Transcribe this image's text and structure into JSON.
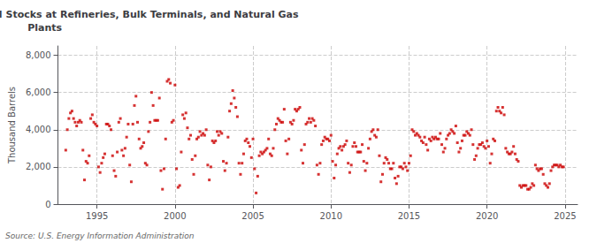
{
  "chart_data": {
    "type": "scatter",
    "title": "Monthly Connecticut Distillate Fuel Oil Stocks at Refineries, Bulk Terminals, and Natural Gas\nPlants",
    "ylabel": "Thousand Barrels",
    "annotations": [
      "Source: U.S. Energy Information Administration"
    ],
    "color": "#cc0000",
    "marker": "square",
    "grid": true,
    "xlim": [
      1992.5,
      2025.8
    ],
    "xticks": [
      1995,
      2000,
      2005,
      2010,
      2015,
      2020,
      2025
    ],
    "ylim": [
      0,
      8500
    ],
    "yticks": [
      0,
      {
        "value": 2000,
        "label": "2,000"
      },
      {
        "value": 4000,
        "label": "4,000"
      },
      {
        "value": 6000,
        "label": "6,000"
      },
      {
        "value": 8000,
        "label": "8,000"
      }
    ],
    "x": [
      1993.0,
      1993.1,
      1993.2,
      1993.3,
      1993.4,
      1993.5,
      1993.6,
      1993.7,
      1993.8,
      1993.9,
      1994.0,
      1994.1,
      1994.2,
      1994.3,
      1994.4,
      1994.5,
      1994.6,
      1994.7,
      1994.8,
      1994.9,
      1995.0,
      1995.1,
      1995.2,
      1995.3,
      1995.4,
      1995.5,
      1995.6,
      1995.7,
      1995.8,
      1995.9,
      1996.0,
      1996.1,
      1996.2,
      1996.3,
      1996.4,
      1996.5,
      1996.6,
      1996.7,
      1996.8,
      1996.9,
      1997.0,
      1997.1,
      1997.2,
      1997.3,
      1997.4,
      1997.5,
      1997.6,
      1997.7,
      1997.8,
      1997.9,
      1998.0,
      1998.1,
      1998.2,
      1998.3,
      1998.4,
      1998.5,
      1998.6,
      1998.7,
      1998.8,
      1998.9,
      1999.0,
      1999.1,
      1999.2,
      1999.3,
      1999.4,
      1999.5,
      1999.6,
      1999.7,
      1999.8,
      1999.9,
      2000.0,
      2000.1,
      2000.2,
      2000.3,
      2000.4,
      2000.5,
      2000.6,
      2000.7,
      2000.8,
      2000.9,
      2001.0,
      2001.1,
      2001.2,
      2001.3,
      2001.4,
      2001.5,
      2001.6,
      2001.7,
      2001.8,
      2001.9,
      2002.0,
      2002.1,
      2002.2,
      2002.3,
      2002.4,
      2002.5,
      2002.6,
      2002.7,
      2002.8,
      2002.9,
      2003.0,
      2003.1,
      2003.2,
      2003.3,
      2003.4,
      2003.5,
      2003.6,
      2003.7,
      2003.8,
      2003.9,
      2004.0,
      2004.1,
      2004.2,
      2004.3,
      2004.4,
      2004.5,
      2004.6,
      2004.7,
      2004.8,
      2004.9,
      2005.0,
      2005.1,
      2005.2,
      2005.3,
      2005.4,
      2005.5,
      2005.6,
      2005.7,
      2005.8,
      2005.9,
      2006.0,
      2006.1,
      2006.2,
      2006.3,
      2006.4,
      2006.5,
      2006.6,
      2006.7,
      2006.8,
      2006.9,
      2007.0,
      2007.1,
      2007.2,
      2007.3,
      2007.4,
      2007.5,
      2007.6,
      2007.7,
      2007.8,
      2007.9,
      2008.0,
      2008.1,
      2008.2,
      2008.3,
      2008.4,
      2008.5,
      2008.6,
      2008.7,
      2008.8,
      2008.9,
      2009.0,
      2009.1,
      2009.2,
      2009.3,
      2009.4,
      2009.5,
      2009.6,
      2009.7,
      2009.8,
      2009.9,
      2010.0,
      2010.1,
      2010.2,
      2010.3,
      2010.4,
      2010.5,
      2010.6,
      2010.7,
      2010.8,
      2010.9,
      2011.0,
      2011.1,
      2011.2,
      2011.3,
      2011.4,
      2011.5,
      2011.6,
      2011.7,
      2011.8,
      2011.9,
      2012.0,
      2012.1,
      2012.2,
      2012.3,
      2012.4,
      2012.5,
      2012.6,
      2012.7,
      2012.8,
      2012.9,
      2013.0,
      2013.1,
      2013.2,
      2013.3,
      2013.4,
      2013.5,
      2013.6,
      2013.7,
      2013.8,
      2013.9,
      2014.0,
      2014.1,
      2014.2,
      2014.3,
      2014.4,
      2014.5,
      2014.6,
      2014.7,
      2014.8,
      2014.9,
      2015.0,
      2015.1,
      2015.2,
      2015.3,
      2015.4,
      2015.5,
      2015.6,
      2015.7,
      2015.8,
      2015.9,
      2016.0,
      2016.1,
      2016.2,
      2016.3,
      2016.4,
      2016.5,
      2016.6,
      2016.7,
      2016.8,
      2016.9,
      2017.0,
      2017.1,
      2017.2,
      2017.3,
      2017.4,
      2017.5,
      2017.6,
      2017.7,
      2017.8,
      2017.9,
      2018.0,
      2018.1,
      2018.2,
      2018.3,
      2018.4,
      2018.5,
      2018.6,
      2018.7,
      2018.8,
      2018.9,
      2019.0,
      2019.1,
      2019.2,
      2019.3,
      2019.4,
      2019.5,
      2019.6,
      2019.7,
      2019.8,
      2019.9,
      2020.0,
      2020.1,
      2020.2,
      2020.3,
      2020.4,
      2020.5,
      2020.6,
      2020.7,
      2020.8,
      2020.9,
      2021.0,
      2021.1,
      2021.2,
      2021.3,
      2021.4,
      2021.5,
      2021.6,
      2021.7,
      2021.8,
      2021.9,
      2022.0,
      2022.1,
      2022.2,
      2022.3,
      2022.4,
      2022.5,
      2022.6,
      2022.7,
      2022.8,
      2022.9,
      2023.0,
      2023.1,
      2023.2,
      2023.3,
      2023.4,
      2023.5,
      2023.6,
      2023.7,
      2023.8,
      2023.9,
      2024.0,
      2024.1,
      2024.2,
      2024.3,
      2024.4,
      2024.5,
      2024.6,
      2024.7,
      2024.8,
      2024.9
    ],
    "values": [
      2900,
      4000,
      4600,
      4900,
      5000,
      4600,
      4400,
      4200,
      4400,
      4500,
      4400,
      2900,
      1300,
      2300,
      2200,
      2600,
      4600,
      4800,
      4400,
      4300,
      4200,
      2000,
      1700,
      2200,
      2500,
      2700,
      4300,
      4300,
      4200,
      4000,
      2600,
      1800,
      1500,
      2800,
      4400,
      4600,
      2900,
      2600,
      3000,
      3600,
      4300,
      2100,
      1200,
      4300,
      5300,
      5800,
      4400,
      3500,
      3000,
      3100,
      3300,
      2200,
      2100,
      3900,
      4400,
      6000,
      5300,
      4500,
      4500,
      4500,
      5700,
      1800,
      800,
      1900,
      3500,
      6600,
      6700,
      6500,
      4400,
      4500,
      6400,
      1900,
      900,
      1000,
      2800,
      4800,
      4600,
      4900,
      4100,
      3500,
      3700,
      2400,
      1600,
      2600,
      3500,
      3600,
      3900,
      3700,
      3800,
      3700,
      4000,
      2100,
      1300,
      2000,
      3400,
      3300,
      3400,
      3900,
      3700,
      3900,
      3800,
      2300,
      1800,
      2200,
      3600,
      5000,
      5400,
      6100,
      5700,
      5200,
      4700,
      2200,
      1600,
      2200,
      2700,
      3400,
      3500,
      3300,
      3100,
      2500,
      3500,
      1900,
      600,
      1500,
      2600,
      2800,
      2700,
      2800,
      2900,
      3000,
      3500,
      2700,
      2600,
      3000,
      4000,
      4300,
      4600,
      4500,
      4400,
      4400,
      5100,
      3400,
      2700,
      3500,
      4400,
      4300,
      4500,
      5100,
      5000,
      5100,
      5200,
      2900,
      2200,
      3200,
      4300,
      4400,
      4600,
      4400,
      4600,
      4500,
      4200,
      2100,
      1600,
      2200,
      3200,
      3400,
      3600,
      3500,
      3500,
      3400,
      3700,
      2300,
      1400,
      2100,
      2700,
      3000,
      3100,
      2900,
      3100,
      3200,
      3400,
      2200,
      1700,
      2100,
      3100,
      3300,
      3100,
      2800,
      2800,
      2800,
      3200,
      2300,
      1800,
      2200,
      3000,
      3500,
      3900,
      4000,
      3700,
      3600,
      4000,
      2600,
      1200,
      1600,
      2200,
      2500,
      2400,
      2200,
      1900,
      1900,
      2200,
      1400,
      1100,
      1500,
      2000,
      2000,
      1900,
      2200,
      2000,
      1800,
      2200,
      2600,
      4000,
      3900,
      3700,
      3800,
      3700,
      3600,
      3400,
      3300,
      3600,
      3200,
      2900,
      3500,
      3400,
      3600,
      3500,
      3600,
      3500,
      3500,
      3800,
      3200,
      2800,
      3000,
      3500,
      3700,
      3800,
      4000,
      3900,
      3800,
      4200,
      3300,
      2800,
      3000,
      3400,
      3700,
      3700,
      3900,
      3800,
      3700,
      4000,
      3200,
      2400,
      2600,
      3000,
      3200,
      3200,
      3300,
      3100,
      3000,
      3400,
      3100,
      2200,
      2700,
      3500,
      3400,
      5000,
      5200,
      5000,
      4900,
      5200,
      4800,
      3000,
      2800,
      2700,
      2700,
      2800,
      3100,
      2700,
      2400,
      2300,
      1000,
      900,
      1000,
      1000,
      1000,
      800,
      800,
      900,
      1100,
      1000,
      2100,
      1900,
      1800,
      1900,
      1900,
      1600,
      1100,
      1000,
      900,
      1100,
      1800,
      2000,
      2100,
      2100,
      2100,
      2000,
      2100,
      2000,
      2000
    ]
  }
}
